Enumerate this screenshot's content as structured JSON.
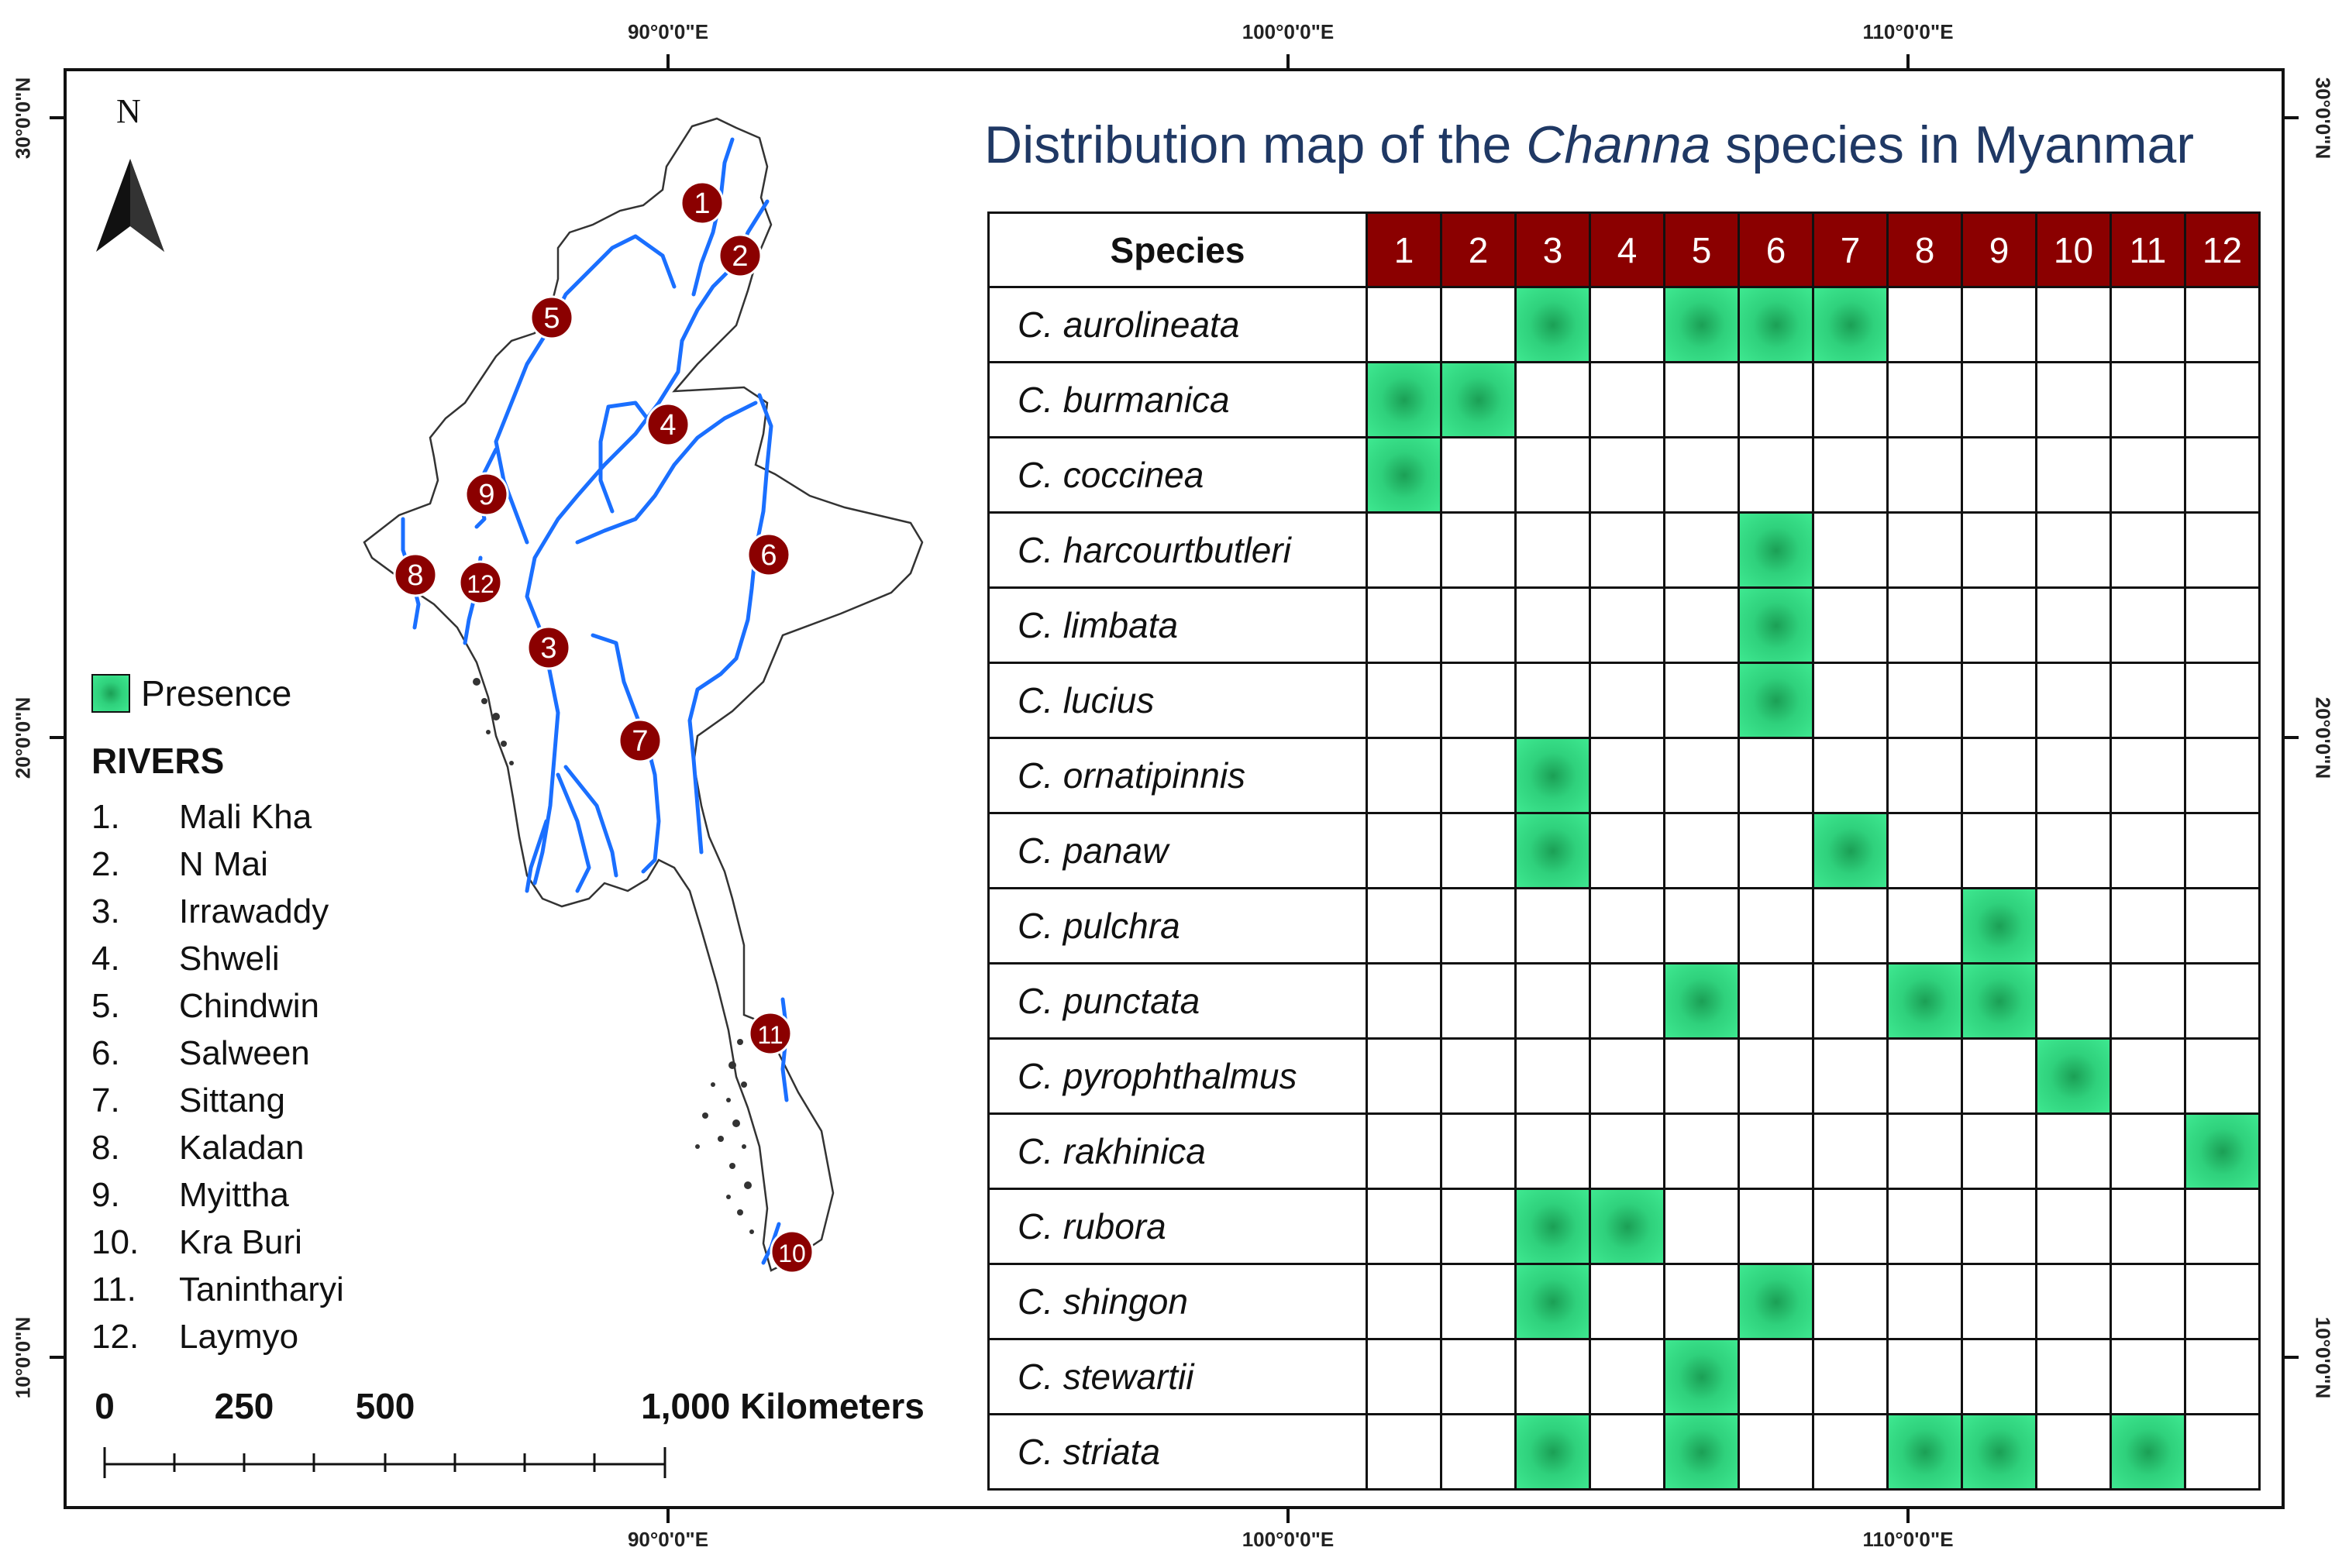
{
  "title": {
    "prefix": "Distribution map of the ",
    "italic": "Channa",
    "suffix": " species in Myanmar"
  },
  "north_arrow": {
    "label": "N"
  },
  "coordinates": {
    "top": [
      "90°0'0\"E",
      "100°0'0\"E",
      "110°0'0\"E"
    ],
    "bottom": [
      "90°0'0\"E",
      "100°0'0\"E",
      "110°0'0\"E"
    ],
    "left": [
      "30°0'0\"N",
      "20°0'0\"N",
      "10°0'0\"N"
    ],
    "right": [
      "30°0'0\"N",
      "20°0'0\"N",
      "10°0'0\"N"
    ]
  },
  "legend": {
    "presence_label": "Presence",
    "presence_color": "#2fd17c",
    "rivers_title": "RIVERS",
    "rivers": [
      {
        "num": "1.",
        "name": "Mali Kha"
      },
      {
        "num": "2.",
        "name": "N Mai"
      },
      {
        "num": "3.",
        "name": "Irrawaddy"
      },
      {
        "num": "4.",
        "name": "Shweli"
      },
      {
        "num": "5.",
        "name": "Chindwin"
      },
      {
        "num": "6.",
        "name": "Salween"
      },
      {
        "num": "7.",
        "name": "Sittang"
      },
      {
        "num": "8.",
        "name": "Kaladan"
      },
      {
        "num": "9.",
        "name": "Myittha"
      },
      {
        "num": "10.",
        "name": "Kra Buri"
      },
      {
        "num": "11.",
        "name": "Tanintharyi"
      },
      {
        "num": "12.",
        "name": "Laymyo"
      }
    ]
  },
  "scale_bar": {
    "labels": [
      "0",
      "250",
      "500",
      "1,000 Kilometers"
    ]
  },
  "map": {
    "river_color": "#1a6fff",
    "marker_color": "#8b0000",
    "markers": [
      "1",
      "2",
      "3",
      "4",
      "5",
      "6",
      "7",
      "8",
      "9",
      "10",
      "11",
      "12"
    ]
  },
  "table": {
    "species_header": "Species",
    "header_color": "#8b0000",
    "columns": [
      "1",
      "2",
      "3",
      "4",
      "5",
      "6",
      "7",
      "8",
      "9",
      "10",
      "11",
      "12"
    ],
    "rows": [
      {
        "species": "C. aurolineata",
        "presence": [
          0,
          0,
          1,
          0,
          1,
          1,
          1,
          0,
          0,
          0,
          0,
          0
        ]
      },
      {
        "species": "C. burmanica",
        "presence": [
          1,
          1,
          0,
          0,
          0,
          0,
          0,
          0,
          0,
          0,
          0,
          0
        ]
      },
      {
        "species": "C. coccinea",
        "presence": [
          1,
          0,
          0,
          0,
          0,
          0,
          0,
          0,
          0,
          0,
          0,
          0
        ]
      },
      {
        "species": "C. harcourtbutleri",
        "presence": [
          0,
          0,
          0,
          0,
          0,
          1,
          0,
          0,
          0,
          0,
          0,
          0
        ]
      },
      {
        "species": "C. limbata",
        "presence": [
          0,
          0,
          0,
          0,
          0,
          1,
          0,
          0,
          0,
          0,
          0,
          0
        ]
      },
      {
        "species": "C. lucius",
        "presence": [
          0,
          0,
          0,
          0,
          0,
          1,
          0,
          0,
          0,
          0,
          0,
          0
        ]
      },
      {
        "species": "C. ornatipinnis",
        "presence": [
          0,
          0,
          1,
          0,
          0,
          0,
          0,
          0,
          0,
          0,
          0,
          0
        ]
      },
      {
        "species": "C. panaw",
        "presence": [
          0,
          0,
          1,
          0,
          0,
          0,
          1,
          0,
          0,
          0,
          0,
          0
        ]
      },
      {
        "species": "C. pulchra",
        "presence": [
          0,
          0,
          0,
          0,
          0,
          0,
          0,
          0,
          1,
          0,
          0,
          0
        ]
      },
      {
        "species": "C. punctata",
        "presence": [
          0,
          0,
          0,
          0,
          1,
          0,
          0,
          1,
          1,
          0,
          0,
          0
        ]
      },
      {
        "species": "C. pyrophthalmus",
        "presence": [
          0,
          0,
          0,
          0,
          0,
          0,
          0,
          0,
          0,
          1,
          0,
          0
        ]
      },
      {
        "species": "C. rakhinica",
        "presence": [
          0,
          0,
          0,
          0,
          0,
          0,
          0,
          0,
          0,
          0,
          0,
          1
        ]
      },
      {
        "species": "C. rubora",
        "presence": [
          0,
          0,
          1,
          1,
          0,
          0,
          0,
          0,
          0,
          0,
          0,
          0
        ]
      },
      {
        "species": "C. shingon",
        "presence": [
          0,
          0,
          1,
          0,
          0,
          1,
          0,
          0,
          0,
          0,
          0,
          0
        ]
      },
      {
        "species": "C. stewartii",
        "presence": [
          0,
          0,
          0,
          0,
          1,
          0,
          0,
          0,
          0,
          0,
          0,
          0
        ]
      },
      {
        "species": "C. striata",
        "presence": [
          0,
          0,
          1,
          0,
          1,
          0,
          0,
          1,
          1,
          0,
          1,
          0
        ]
      }
    ]
  }
}
